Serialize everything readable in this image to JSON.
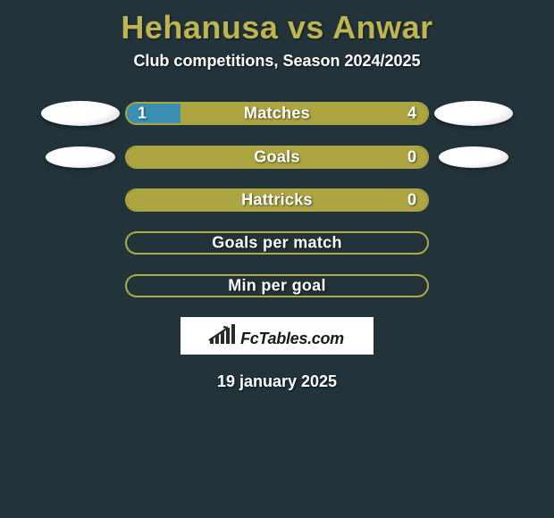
{
  "header": {
    "title": "Hehanusa vs Anwar",
    "subtitle": "Club competitions, Season 2024/2025",
    "title_color": "#bcb551",
    "title_fontsize": 36,
    "subtitle_fontsize": 18
  },
  "brand": {
    "text": "FcTables.com",
    "box_bg": "#ffffff",
    "text_color": "#1a1a1a"
  },
  "date": "19 january 2025",
  "palette": {
    "background": "#22333a",
    "olive": "#ada542",
    "olive_border": "#b0a946",
    "blue": "#3a8fb2",
    "bar_border_empty": "#b0a946",
    "label_color": "#ffffff"
  },
  "bars": [
    {
      "label": "Matches",
      "left_val": "1",
      "right_val": "4",
      "left_pct": 18,
      "right_pct": 82,
      "left_color": "#3a8fb2",
      "right_color": "#ada542",
      "show_left_ball": true,
      "show_right_ball": true,
      "ball_small": false,
      "border_color": "#ada542"
    },
    {
      "label": "Goals",
      "left_val": "",
      "right_val": "0",
      "left_pct": 100,
      "right_pct": 0,
      "left_color": "#ada542",
      "right_color": "#ada542",
      "show_left_ball": true,
      "show_right_ball": true,
      "ball_small": true,
      "border_color": "#ada542"
    },
    {
      "label": "Hattricks",
      "left_val": "",
      "right_val": "0",
      "left_pct": 100,
      "right_pct": 0,
      "left_color": "#ada542",
      "right_color": "#ada542",
      "show_left_ball": false,
      "show_right_ball": false,
      "ball_small": false,
      "border_color": "#ada542"
    },
    {
      "label": "Goals per match",
      "left_val": "",
      "right_val": "",
      "left_pct": 0,
      "right_pct": 0,
      "left_color": "#ada542",
      "right_color": "#ada542",
      "show_left_ball": false,
      "show_right_ball": false,
      "ball_small": false,
      "border_color": "#b0a946"
    },
    {
      "label": "Min per goal",
      "left_val": "",
      "right_val": "",
      "left_pct": 0,
      "right_pct": 0,
      "left_color": "#ada542",
      "right_color": "#ada542",
      "show_left_ball": false,
      "show_right_ball": false,
      "ball_small": false,
      "border_color": "#b0a946"
    }
  ]
}
